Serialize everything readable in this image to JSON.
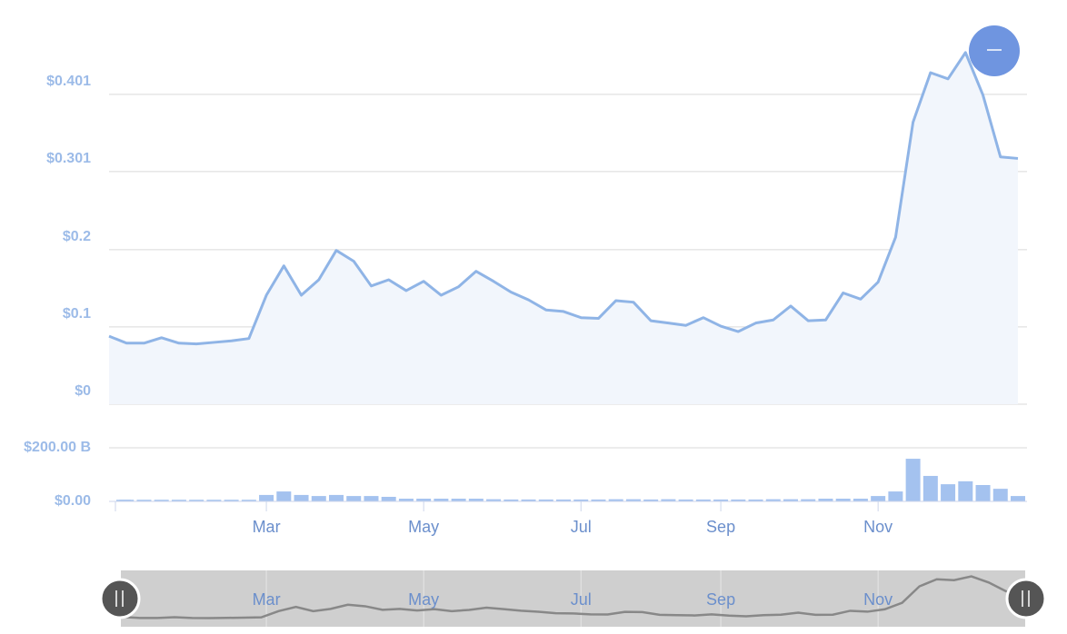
{
  "chart_data": [
    {
      "type": "line",
      "color": "#8fb4e6",
      "categories": [
        null,
        null,
        null,
        null,
        null,
        null,
        null,
        null,
        null,
        "Mar",
        null,
        null,
        null,
        null,
        null,
        null,
        null,
        null,
        "May",
        null,
        null,
        null,
        null,
        null,
        null,
        null,
        null,
        "Jul",
        null,
        null,
        null,
        null,
        null,
        null,
        null,
        "Sep",
        null,
        null,
        null,
        null,
        null,
        null,
        null,
        null,
        "Nov",
        null,
        null,
        null,
        null,
        null,
        null,
        null,
        null
      ],
      "values": [
        0.088,
        0.079,
        0.079,
        0.086,
        0.079,
        0.078,
        0.08,
        0.082,
        0.085,
        0.141,
        0.179,
        0.141,
        0.161,
        0.199,
        0.185,
        0.153,
        0.161,
        0.147,
        0.159,
        0.141,
        0.152,
        0.172,
        0.159,
        0.145,
        0.135,
        0.122,
        0.12,
        0.112,
        0.111,
        0.134,
        0.132,
        0.108,
        0.105,
        0.102,
        0.112,
        0.101,
        0.094,
        0.105,
        0.109,
        0.127,
        0.108,
        0.109,
        0.144,
        0.136,
        0.158,
        0.216,
        0.365,
        0.429,
        0.421,
        0.455,
        0.4,
        0.32,
        0.318
      ],
      "ylim": [
        0,
        0.476
      ],
      "yticks": [
        {
          "value": 0,
          "label": "$0"
        },
        {
          "value": 0.1,
          "label": "$0.1"
        },
        {
          "value": 0.2,
          "label": "$0.2"
        },
        {
          "value": 0.301,
          "label": "$0.301"
        },
        {
          "value": 0.401,
          "label": "$0.401"
        }
      ],
      "grid": true
    },
    {
      "type": "bar",
      "color": "#a4c2ef",
      "values": [
        6000000000,
        6000000000,
        6000000000,
        6000000000,
        6000000000,
        6000000000,
        6000000000,
        6000000000,
        6000000000,
        24000000000,
        37000000000,
        24000000000,
        20000000000,
        24000000000,
        20000000000,
        20000000000,
        17000000000,
        10000000000,
        10000000000,
        10000000000,
        10000000000,
        10000000000,
        8000000000,
        7000000000,
        7000000000,
        7000000000,
        7000000000,
        7000000000,
        7000000000,
        8000000000,
        8000000000,
        7000000000,
        8000000000,
        7000000000,
        7000000000,
        7000000000,
        7000000000,
        7000000000,
        8000000000,
        8000000000,
        8000000000,
        10000000000,
        10000000000,
        10000000000,
        20000000000,
        37000000000,
        159000000000,
        95000000000,
        64000000000,
        75000000000,
        61000000000,
        47000000000,
        20000000000
      ],
      "ylim": [
        0,
        227000000000
      ],
      "yticks": [
        {
          "value": 0,
          "label": "$0.00"
        },
        {
          "value": 200000000000,
          "label": "$200.00 B"
        }
      ],
      "grid": true
    }
  ]
}
